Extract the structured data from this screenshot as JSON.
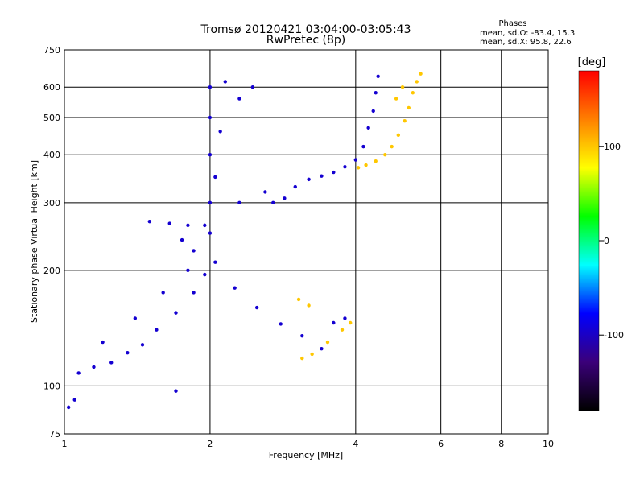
{
  "chart_data": {
    "type": "scatter",
    "title": "Tromsø 20120421 03:04:00-03:05:43",
    "subtitle": "RwPretec (8p)",
    "info": {
      "heading": "Phases",
      "line1": "mean, sd,O: -83.4, 15.3",
      "line2": "mean, sd,X: 95.8, 22.6"
    },
    "xlabel": "Frequency [MHz]",
    "ylabel": "Stationary phase Virtual Height [km]",
    "x_scale": "log",
    "y_scale": "log",
    "xlim": [
      1,
      10
    ],
    "ylim": [
      75,
      750
    ],
    "x_ticks": [
      1,
      2,
      4,
      6,
      8,
      10
    ],
    "x_tick_labels": [
      "1",
      "2",
      "4",
      "6",
      "8",
      "10"
    ],
    "y_ticks": [
      75,
      100,
      200,
      300,
      400,
      500,
      600,
      750
    ],
    "y_tick_labels": [
      "75",
      "100",
      "200",
      "300",
      "400",
      "500",
      "600",
      "750"
    ],
    "grid": true,
    "colorbar": {
      "label": "[deg]",
      "range": [
        -180,
        180
      ],
      "ticks": [
        -100,
        0,
        100
      ],
      "tick_labels": [
        "-100",
        "0",
        "100"
      ],
      "colors": [
        "#000000",
        "#3b007a",
        "#0000ff",
        "#00ffff",
        "#00ff00",
        "#ffff00",
        "#ff8000",
        "#ff0000"
      ]
    },
    "series": [
      {
        "phase_deg": -95,
        "points": [
          [
            1.07,
            108
          ],
          [
            1.15,
            112
          ],
          [
            1.25,
            115
          ],
          [
            1.35,
            122
          ],
          [
            1.45,
            128
          ],
          [
            1.55,
            140
          ],
          [
            1.7,
            155
          ],
          [
            1.85,
            175
          ],
          [
            1.95,
            195
          ],
          [
            2.05,
            210
          ],
          [
            2.25,
            180
          ],
          [
            2.5,
            160
          ],
          [
            2.8,
            145
          ],
          [
            3.1,
            135
          ],
          [
            3.4,
            125
          ],
          [
            1.2,
            130
          ],
          [
            1.4,
            150
          ],
          [
            1.6,
            175
          ],
          [
            1.8,
            200
          ],
          [
            1.5,
            268
          ],
          [
            1.65,
            265
          ],
          [
            1.8,
            262
          ],
          [
            1.95,
            262
          ],
          [
            1.75,
            240
          ],
          [
            1.85,
            225
          ],
          [
            2.0,
            250
          ],
          [
            2.0,
            300
          ],
          [
            2.0,
            400
          ],
          [
            2.0,
            500
          ],
          [
            2.0,
            600
          ],
          [
            2.05,
            350
          ],
          [
            2.1,
            460
          ],
          [
            2.15,
            620
          ],
          [
            2.3,
            300
          ],
          [
            2.3,
            560
          ],
          [
            2.45,
            600
          ],
          [
            2.6,
            320
          ],
          [
            2.7,
            300
          ],
          [
            2.85,
            308
          ],
          [
            3.0,
            330
          ],
          [
            3.2,
            345
          ],
          [
            3.4,
            352
          ],
          [
            3.6,
            360
          ],
          [
            3.8,
            372
          ],
          [
            4.0,
            388
          ],
          [
            4.15,
            420
          ],
          [
            4.25,
            470
          ],
          [
            4.35,
            520
          ],
          [
            4.4,
            580
          ],
          [
            4.45,
            640
          ],
          [
            1.02,
            88
          ],
          [
            1.05,
            92
          ],
          [
            1.7,
            97
          ],
          [
            3.8,
            150
          ],
          [
            3.6,
            146
          ]
        ]
      },
      {
        "phase_deg": 100,
        "points": [
          [
            4.05,
            370
          ],
          [
            4.2,
            376
          ],
          [
            4.4,
            385
          ],
          [
            4.6,
            400
          ],
          [
            4.75,
            420
          ],
          [
            4.9,
            450
          ],
          [
            5.05,
            490
          ],
          [
            5.15,
            530
          ],
          [
            5.25,
            580
          ],
          [
            5.35,
            620
          ],
          [
            5.45,
            650
          ],
          [
            5.0,
            600
          ],
          [
            4.85,
            560
          ],
          [
            3.1,
            118
          ],
          [
            3.25,
            121
          ],
          [
            3.5,
            130
          ],
          [
            3.75,
            140
          ],
          [
            3.9,
            146
          ],
          [
            3.05,
            168
          ],
          [
            3.2,
            162
          ]
        ]
      }
    ]
  }
}
